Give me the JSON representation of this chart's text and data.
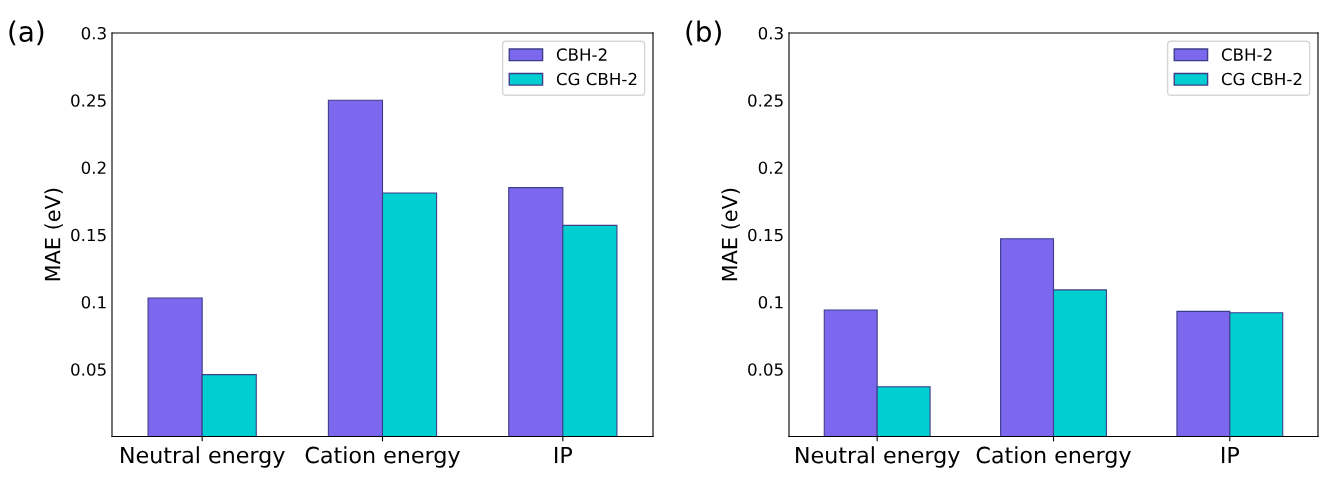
{
  "chart_data": [
    {
      "type": "bar",
      "annotations": [
        "(a)"
      ],
      "ylabel": "MAE (eV)",
      "categories": [
        "Neutral energy",
        "Cation energy",
        "IP"
      ],
      "series": [
        {
          "name": "CBH-2",
          "color": "#7b68ee",
          "values": [
            0.103,
            0.25,
            0.185
          ]
        },
        {
          "name": "CG CBH-2",
          "color": "#00ced1",
          "values": [
            0.046,
            0.181,
            0.157
          ]
        }
      ],
      "ylim": [
        0,
        0.3
      ],
      "yticks": [
        0.05,
        0.1,
        0.15,
        0.2,
        0.25,
        0.3
      ],
      "legend": "top right",
      "grid": false
    },
    {
      "type": "bar",
      "annotations": [
        "(b)"
      ],
      "ylabel": "MAE (eV)",
      "categories": [
        "Neutral energy",
        "Cation energy",
        "IP"
      ],
      "series": [
        {
          "name": "CBH-2",
          "color": "#7b68ee",
          "values": [
            0.094,
            0.147,
            0.093
          ]
        },
        {
          "name": "CG CBH-2",
          "color": "#00ced1",
          "values": [
            0.037,
            0.109,
            0.092
          ]
        }
      ],
      "ylim": [
        0,
        0.3
      ],
      "yticks": [
        0.05,
        0.1,
        0.15,
        0.2,
        0.25,
        0.3
      ],
      "legend": "top right",
      "grid": false
    }
  ]
}
